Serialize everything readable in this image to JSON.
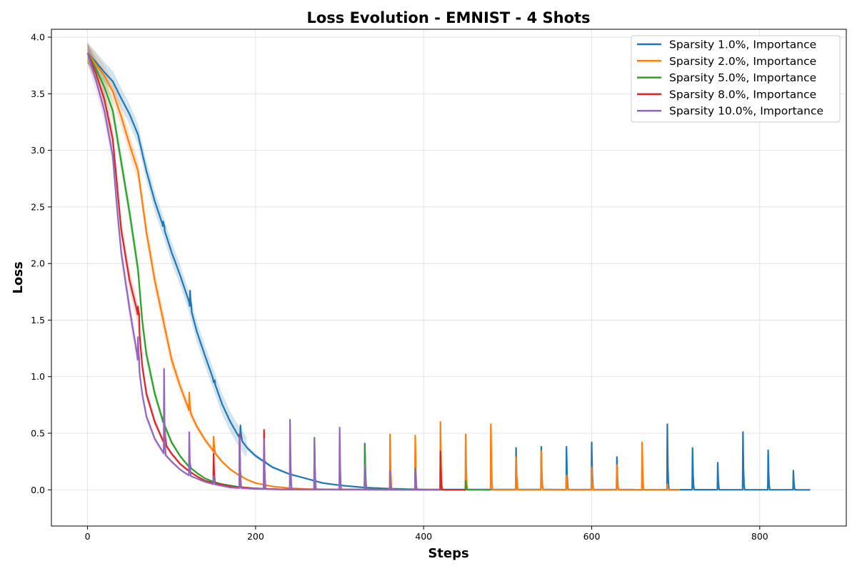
{
  "chart_data": {
    "type": "line",
    "title": "Loss Evolution - EMNIST - 4 Shots",
    "xlabel": "Steps",
    "ylabel": "Loss",
    "xlim": [
      -43,
      903
    ],
    "ylim": [
      -0.32,
      4.07
    ],
    "xticks": [
      0,
      200,
      400,
      600,
      800
    ],
    "yticks": [
      0.0,
      0.5,
      1.0,
      1.5,
      2.0,
      2.5,
      3.0,
      3.5,
      4.0
    ],
    "xtick_labels": [
      "0",
      "200",
      "400",
      "600",
      "800"
    ],
    "ytick_labels": [
      "0.0",
      "0.5",
      "1.0",
      "1.5",
      "2.0",
      "2.5",
      "3.0",
      "3.5",
      "4.0"
    ],
    "grid": true,
    "legend_position": "top-right",
    "series": [
      {
        "name": "Sparsity 1.0%, Importance",
        "color": "#1f77b4",
        "end_step": 860,
        "points": [
          [
            0,
            3.86
          ],
          [
            10,
            3.78
          ],
          [
            20,
            3.69
          ],
          [
            30,
            3.61
          ],
          [
            40,
            3.46
          ],
          [
            50,
            3.32
          ],
          [
            60,
            3.14
          ],
          [
            70,
            2.82
          ],
          [
            80,
            2.55
          ],
          [
            90,
            2.33
          ],
          [
            100,
            2.1
          ],
          [
            110,
            1.9
          ],
          [
            120,
            1.68
          ],
          [
            130,
            1.4
          ],
          [
            140,
            1.18
          ],
          [
            150,
            0.97
          ],
          [
            160,
            0.76
          ],
          [
            170,
            0.6
          ],
          [
            180,
            0.47
          ],
          [
            190,
            0.37
          ],
          [
            200,
            0.3
          ],
          [
            220,
            0.2
          ],
          [
            240,
            0.14
          ],
          [
            260,
            0.1
          ],
          [
            280,
            0.06
          ],
          [
            300,
            0.04
          ],
          [
            330,
            0.02
          ],
          [
            360,
            0.01
          ],
          [
            400,
            0.003
          ],
          [
            860,
            0.0
          ]
        ],
        "spikes": [
          [
            90,
            2.37
          ],
          [
            122,
            1.76
          ],
          [
            150,
            0.95
          ],
          [
            182,
            0.57
          ],
          [
            210,
            0.25
          ],
          [
            330,
            0.41
          ],
          [
            510,
            0.37
          ],
          [
            540,
            0.38
          ],
          [
            570,
            0.38
          ],
          [
            600,
            0.42
          ],
          [
            630,
            0.29
          ],
          [
            690,
            0.58
          ],
          [
            720,
            0.37
          ],
          [
            750,
            0.24
          ],
          [
            780,
            0.51
          ],
          [
            810,
            0.35
          ],
          [
            840,
            0.17
          ]
        ]
      },
      {
        "name": "Sparsity 2.0%, Importance",
        "color": "#ff7f0e",
        "end_step": 705,
        "points": [
          [
            0,
            3.86
          ],
          [
            10,
            3.76
          ],
          [
            20,
            3.66
          ],
          [
            30,
            3.52
          ],
          [
            40,
            3.3
          ],
          [
            50,
            3.05
          ],
          [
            60,
            2.82
          ],
          [
            65,
            2.55
          ],
          [
            70,
            2.28
          ],
          [
            80,
            1.85
          ],
          [
            90,
            1.5
          ],
          [
            100,
            1.15
          ],
          [
            110,
            0.92
          ],
          [
            120,
            0.72
          ],
          [
            130,
            0.56
          ],
          [
            140,
            0.44
          ],
          [
            150,
            0.34
          ],
          [
            160,
            0.25
          ],
          [
            170,
            0.18
          ],
          [
            180,
            0.13
          ],
          [
            190,
            0.09
          ],
          [
            200,
            0.06
          ],
          [
            220,
            0.03
          ],
          [
            240,
            0.015
          ],
          [
            260,
            0.007
          ],
          [
            300,
            0.002
          ],
          [
            705,
            0.0
          ]
        ],
        "spikes": [
          [
            121,
            0.86
          ],
          [
            150,
            0.47
          ],
          [
            182,
            0.13
          ],
          [
            360,
            0.49
          ],
          [
            390,
            0.48
          ],
          [
            420,
            0.6
          ],
          [
            450,
            0.49
          ],
          [
            480,
            0.58
          ],
          [
            510,
            0.29
          ],
          [
            540,
            0.34
          ],
          [
            570,
            0.13
          ],
          [
            600,
            0.2
          ],
          [
            630,
            0.22
          ],
          [
            660,
            0.42
          ],
          [
            690,
            0.05
          ]
        ]
      },
      {
        "name": "Sparsity 5.0%, Importance",
        "color": "#2ca02c",
        "end_step": 480,
        "points": [
          [
            0,
            3.86
          ],
          [
            10,
            3.72
          ],
          [
            20,
            3.56
          ],
          [
            30,
            3.35
          ],
          [
            40,
            2.9
          ],
          [
            50,
            2.45
          ],
          [
            60,
            1.95
          ],
          [
            65,
            1.5
          ],
          [
            70,
            1.2
          ],
          [
            80,
            0.85
          ],
          [
            90,
            0.6
          ],
          [
            100,
            0.42
          ],
          [
            110,
            0.3
          ],
          [
            120,
            0.21
          ],
          [
            130,
            0.15
          ],
          [
            140,
            0.1
          ],
          [
            150,
            0.07
          ],
          [
            160,
            0.05
          ],
          [
            180,
            0.025
          ],
          [
            200,
            0.012
          ],
          [
            230,
            0.004
          ],
          [
            480,
            0.0
          ]
        ],
        "spikes": [
          [
            90,
            0.64
          ],
          [
            121,
            0.31
          ],
          [
            270,
            0.46
          ],
          [
            330,
            0.39
          ],
          [
            390,
            0.19
          ],
          [
            450,
            0.08
          ]
        ]
      },
      {
        "name": "Sparsity 8.0%, Importance",
        "color": "#d62728",
        "end_step": 450,
        "points": [
          [
            0,
            3.86
          ],
          [
            10,
            3.68
          ],
          [
            20,
            3.45
          ],
          [
            30,
            3.1
          ],
          [
            35,
            2.7
          ],
          [
            40,
            2.3
          ],
          [
            50,
            1.85
          ],
          [
            60,
            1.55
          ],
          [
            65,
            1.1
          ],
          [
            70,
            0.85
          ],
          [
            80,
            0.6
          ],
          [
            90,
            0.43
          ],
          [
            100,
            0.32
          ],
          [
            110,
            0.23
          ],
          [
            120,
            0.17
          ],
          [
            130,
            0.12
          ],
          [
            140,
            0.08
          ],
          [
            150,
            0.06
          ],
          [
            170,
            0.03
          ],
          [
            200,
            0.012
          ],
          [
            230,
            0.004
          ],
          [
            450,
            0.0
          ]
        ],
        "spikes": [
          [
            60,
            1.62
          ],
          [
            92,
            0.53
          ],
          [
            150,
            0.32
          ],
          [
            181,
            0.49
          ],
          [
            210,
            0.53
          ],
          [
            420,
            0.34
          ]
        ]
      },
      {
        "name": "Sparsity 10.0%, Importance",
        "color": "#9467bd",
        "end_step": 420,
        "points": [
          [
            0,
            3.86
          ],
          [
            10,
            3.62
          ],
          [
            20,
            3.35
          ],
          [
            30,
            2.95
          ],
          [
            35,
            2.5
          ],
          [
            40,
            2.1
          ],
          [
            50,
            1.6
          ],
          [
            60,
            1.15
          ],
          [
            65,
            0.85
          ],
          [
            70,
            0.65
          ],
          [
            80,
            0.45
          ],
          [
            90,
            0.33
          ],
          [
            100,
            0.25
          ],
          [
            110,
            0.18
          ],
          [
            120,
            0.13
          ],
          [
            130,
            0.1
          ],
          [
            140,
            0.07
          ],
          [
            150,
            0.05
          ],
          [
            170,
            0.02
          ],
          [
            200,
            0.008
          ],
          [
            230,
            0.003
          ],
          [
            420,
            0.0
          ]
        ],
        "spikes": [
          [
            60,
            1.35
          ],
          [
            91,
            1.07
          ],
          [
            121,
            0.51
          ],
          [
            150,
            0.12
          ],
          [
            181,
            0.47
          ],
          [
            210,
            0.45
          ],
          [
            241,
            0.62
          ],
          [
            270,
            0.45
          ],
          [
            300,
            0.55
          ],
          [
            330,
            0.22
          ],
          [
            360,
            0.17
          ],
          [
            390,
            0.18
          ]
        ]
      }
    ]
  }
}
